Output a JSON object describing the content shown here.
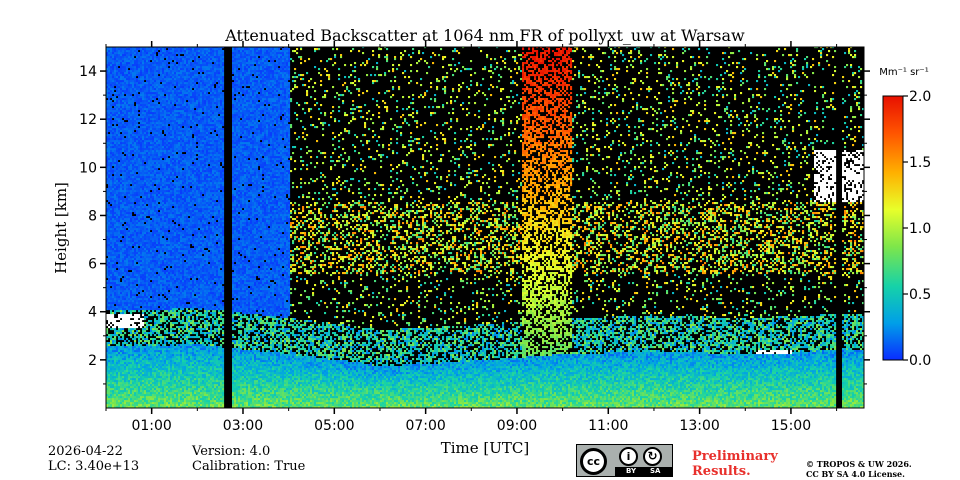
{
  "chart_data": {
    "type": "heatmap",
    "title": "Attenuated Backscatter at 1064 nm FR of pollyxt_uw at Warsaw",
    "xlabel": "Time [UTC]",
    "ylabel": "Height [km]",
    "xlim": [
      0,
      16.6
    ],
    "ylim": [
      0,
      15
    ],
    "x_ticks": [
      {
        "value": 1,
        "label": "01:00"
      },
      {
        "value": 3,
        "label": "03:00"
      },
      {
        "value": 5,
        "label": "05:00"
      },
      {
        "value": 7,
        "label": "07:00"
      },
      {
        "value": 9,
        "label": "09:00"
      },
      {
        "value": 11,
        "label": "11:00"
      },
      {
        "value": 13,
        "label": "13:00"
      },
      {
        "value": 15,
        "label": "15:00"
      }
    ],
    "y_ticks": [
      {
        "value": 2,
        "label": "2"
      },
      {
        "value": 4,
        "label": "4"
      },
      {
        "value": 6,
        "label": "6"
      },
      {
        "value": 8,
        "label": "8"
      },
      {
        "value": 10,
        "label": "10"
      },
      {
        "value": 12,
        "label": "12"
      },
      {
        "value": 14,
        "label": "14"
      }
    ],
    "colorbar": {
      "unit_text": "Mm⁻¹ sr⁻¹",
      "range": [
        0.0,
        2.0
      ],
      "ticks": [
        {
          "value": 0.0,
          "label": "0.0"
        },
        {
          "value": 0.5,
          "label": "0.5"
        },
        {
          "value": 1.0,
          "label": "1.0"
        },
        {
          "value": 1.5,
          "label": "1.5"
        },
        {
          "value": 2.0,
          "label": "2.0"
        }
      ],
      "colors": [
        "#0a2cff",
        "#009fe8",
        "#16d2a8",
        "#7ee64a",
        "#e8ff2a",
        "#ffb000",
        "#ff5400",
        "#e81000"
      ]
    },
    "features": {
      "no_data_gaps_hours": [
        [
          2.55,
          2.75
        ],
        [
          15.95,
          16.1
        ]
      ],
      "low_signal_sky_until_hour": 4.0,
      "boundary_layer_top_km": [
        [
          0,
          2.5
        ],
        [
          2,
          2.6
        ],
        [
          4,
          2.2
        ],
        [
          6,
          1.7
        ],
        [
          8,
          1.9
        ],
        [
          10,
          2.2
        ],
        [
          12,
          2.3
        ],
        [
          14,
          2.2
        ],
        [
          16.6,
          2.4
        ]
      ],
      "aerosol_layer_km": [
        5.5,
        8.5
      ],
      "high_signal_column_hours": [
        9.1,
        10.2
      ],
      "low_clouds": [
        {
          "start_hour": 0.0,
          "end_hour": 0.8,
          "height_km": [
            3.3,
            3.9
          ]
        },
        {
          "start_hour": 14.2,
          "end_hour": 15.0,
          "height_km": [
            2.2,
            2.4
          ]
        }
      ],
      "high_clouds": [
        {
          "start_hour": 15.5,
          "end_hour": 16.6,
          "height_km": [
            8.5,
            10.7
          ]
        }
      ]
    }
  },
  "footer": {
    "date": "2026-04-22",
    "lc": "LC: 3.40e+13",
    "version": "Version: 4.0",
    "calibration": "Calibration: True",
    "preliminary": [
      "Preliminary",
      "Results."
    ],
    "copyright": [
      "© TROPOS & UW 2026.",
      "CC BY SA 4.0 License."
    ]
  },
  "license_badge": {
    "cc": "cc",
    "by": "BY",
    "sa": "SA"
  }
}
